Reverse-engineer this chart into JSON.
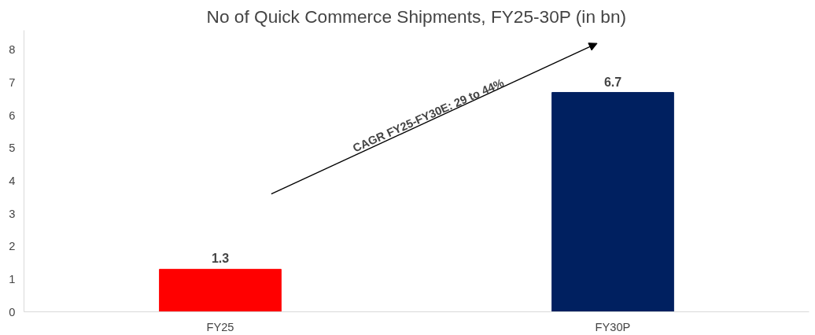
{
  "chart_data": {
    "type": "bar",
    "title": "No of Quick Commerce Shipments, FY25-30P (in bn)",
    "categories": [
      "FY25",
      "FY30P"
    ],
    "values": [
      1.3,
      6.7
    ],
    "colors": [
      "#ff0000",
      "#002060"
    ],
    "ylim": [
      0,
      8.6
    ],
    "yticks": [
      0,
      1,
      2,
      3,
      4,
      5,
      6,
      7,
      8
    ],
    "grid": false,
    "data_labels": true,
    "annotations": [
      "CAGR FY25-FY30E: 29 to 44%"
    ]
  }
}
